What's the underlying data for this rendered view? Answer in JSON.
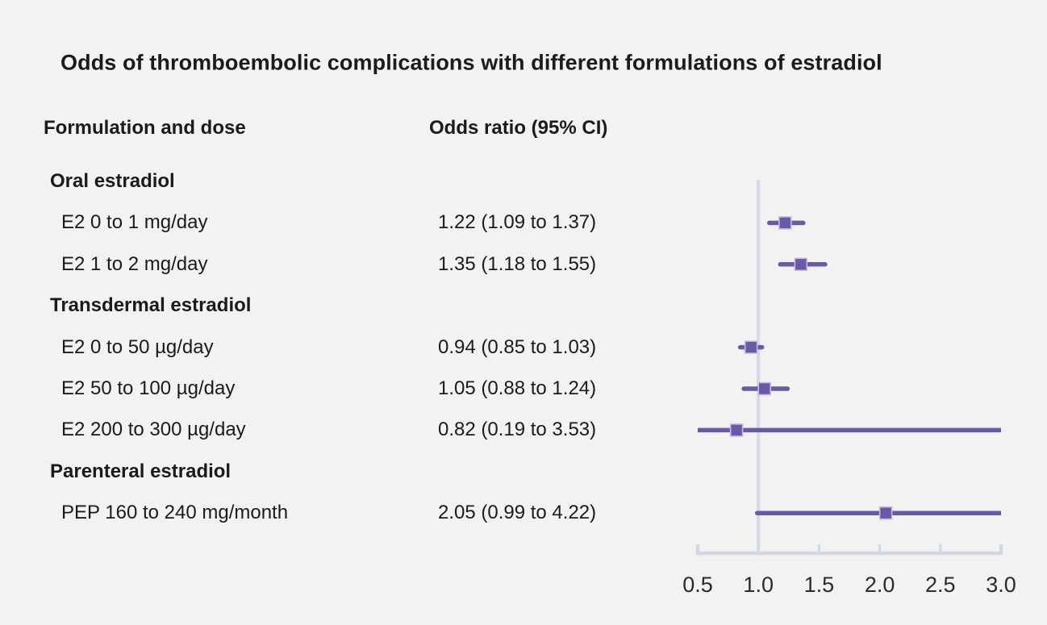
{
  "page": {
    "title": "Odds of thromboembolic complications with different formulations of estradiol"
  },
  "table": {
    "col1_header": "Formulation and dose",
    "col2_header": "Odds ratio (95% CI)"
  },
  "colors": {
    "background": "#f2f2f2",
    "marker": "#6a59a6",
    "marker_border": "#c6bcdf",
    "ci_line": "#6a59a6",
    "reference_line": "#d6dae2",
    "axis_line": "#d2d8e0",
    "text": "#1b1b1b"
  },
  "chart_data": {
    "type": "forest",
    "title": "Odds of thromboembolic complications with different formulations of estradiol",
    "xlabel": "",
    "xlim": [
      0.5,
      3.0
    ],
    "x_ticks": [
      0.5,
      1.0,
      1.5,
      2.0,
      2.5,
      3.0
    ],
    "x_tick_labels": [
      "0.5",
      "1.0",
      "1.5",
      "2.0",
      "2.5",
      "3.0"
    ],
    "reference_value": 1.0,
    "grid": false,
    "legend": false,
    "rows": [
      {
        "kind": "group",
        "label": "Oral estradiol"
      },
      {
        "kind": "item",
        "label": "E2 0 to 1 mg/day",
        "value_text": "1.22 (1.09 to 1.37)",
        "or": 1.22,
        "ci_low": 1.09,
        "ci_high": 1.37
      },
      {
        "kind": "item",
        "label": "E2 1 to 2 mg/day",
        "value_text": "1.35 (1.18 to 1.55)",
        "or": 1.35,
        "ci_low": 1.18,
        "ci_high": 1.55
      },
      {
        "kind": "group",
        "label": "Transdermal estradiol"
      },
      {
        "kind": "item",
        "label": "E2 0 to 50 µg/day",
        "value_text": "0.94 (0.85 to 1.03)",
        "or": 0.94,
        "ci_low": 0.85,
        "ci_high": 1.03
      },
      {
        "kind": "item",
        "label": "E2 50 to 100 µg/day",
        "value_text": "1.05 (0.88 to 1.24)",
        "or": 1.05,
        "ci_low": 0.88,
        "ci_high": 1.24
      },
      {
        "kind": "item",
        "label": "E2 200 to 300 µg/day",
        "value_text": "0.82 (0.19 to 3.53)",
        "or": 0.82,
        "ci_low": 0.19,
        "ci_high": 3.53
      },
      {
        "kind": "group",
        "label": "Parenteral estradiol"
      },
      {
        "kind": "item",
        "label": "PEP 160 to 240 mg/month",
        "value_text": "2.05 (0.99 to 4.22)",
        "or": 2.05,
        "ci_low": 0.99,
        "ci_high": 4.22
      }
    ]
  }
}
